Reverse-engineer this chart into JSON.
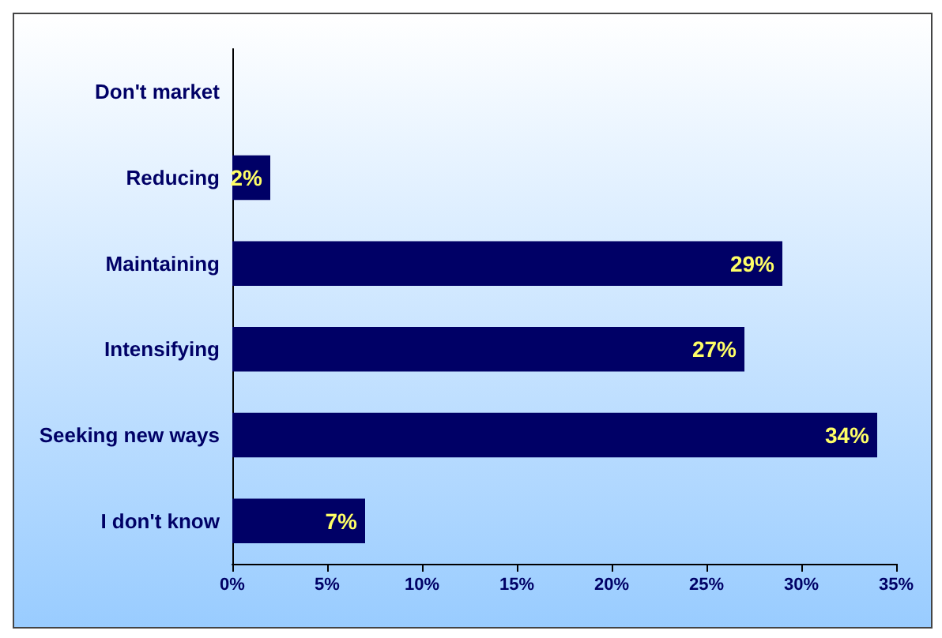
{
  "chart_data": {
    "type": "bar",
    "orientation": "horizontal",
    "categories": [
      "Don't market",
      "Reducing",
      "Maintaining",
      "Intensifying",
      "Seeking new ways",
      "I don't know"
    ],
    "values": [
      0,
      2,
      29,
      27,
      34,
      7
    ],
    "value_labels": [
      null,
      "2%",
      "29%",
      "27%",
      "34%",
      "7%"
    ],
    "color": "#000066",
    "xlim": [
      0,
      35
    ],
    "xticks": [
      {
        "value": 0,
        "label": "0%"
      },
      {
        "value": 5,
        "label": "5%"
      },
      {
        "value": 10,
        "label": "10%"
      },
      {
        "value": 15,
        "label": "15%"
      },
      {
        "value": 20,
        "label": "20%"
      },
      {
        "value": 25,
        "label": "25%"
      },
      {
        "value": 30,
        "label": "30%"
      },
      {
        "value": 35,
        "label": "35%"
      }
    ]
  }
}
